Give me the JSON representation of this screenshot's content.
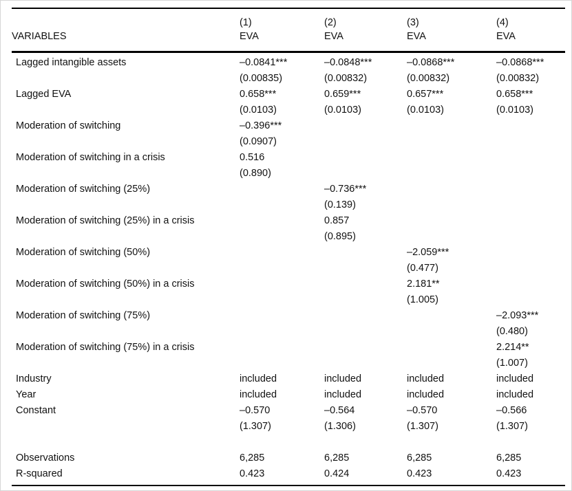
{
  "colors": {
    "text": "#111111",
    "rule": "#000000",
    "background": "#ffffff",
    "page_border": "#d6d6d6"
  },
  "table": {
    "header": {
      "variables_label": "VARIABLES",
      "model_numbers": [
        "(1)",
        "(2)",
        "(3)",
        "(4)"
      ],
      "dep_vars": [
        "EVA",
        "EVA",
        "EVA",
        "EVA"
      ]
    },
    "rows": [
      {
        "label": "Lagged intangible assets",
        "values": [
          "–0.0841***",
          "–0.0848***",
          "–0.0868***",
          "–0.0868***"
        ]
      },
      {
        "label": "",
        "values": [
          "(0.00835)",
          "(0.00832)",
          "(0.00832)",
          "(0.00832)"
        ]
      },
      {
        "label": "Lagged EVA",
        "values": [
          "0.658***",
          "0.659***",
          "0.657***",
          "0.658***"
        ]
      },
      {
        "label": "",
        "values": [
          "(0.0103)",
          "(0.0103)",
          "(0.0103)",
          "(0.0103)"
        ]
      },
      {
        "label": "Moderation of switching",
        "values": [
          "–0.396***",
          "",
          "",
          ""
        ]
      },
      {
        "label": "",
        "values": [
          "(0.0907)",
          "",
          "",
          ""
        ]
      },
      {
        "label": "Moderation of switching in a crisis",
        "values": [
          "0.516",
          "",
          "",
          ""
        ]
      },
      {
        "label": "",
        "values": [
          "(0.890)",
          "",
          "",
          ""
        ]
      },
      {
        "label": "Moderation of switching (25%)",
        "values": [
          "",
          "–0.736***",
          "",
          ""
        ]
      },
      {
        "label": "",
        "values": [
          "",
          "(0.139)",
          "",
          ""
        ]
      },
      {
        "label": "Moderation of switching (25%) in a crisis",
        "values": [
          "",
          "0.857",
          "",
          ""
        ]
      },
      {
        "label": "",
        "values": [
          "",
          "(0.895)",
          "",
          ""
        ]
      },
      {
        "label": "Moderation of switching (50%)",
        "values": [
          "",
          "",
          "–2.059***",
          ""
        ]
      },
      {
        "label": "",
        "values": [
          "",
          "",
          "(0.477)",
          ""
        ]
      },
      {
        "label": "Moderation of switching (50%) in a crisis",
        "values": [
          "",
          "",
          "2.181**",
          ""
        ]
      },
      {
        "label": "",
        "values": [
          "",
          "",
          "(1.005)",
          ""
        ]
      },
      {
        "label": "Moderation of switching (75%)",
        "values": [
          "",
          "",
          "",
          "–2.093***"
        ]
      },
      {
        "label": "",
        "values": [
          "",
          "",
          "",
          "(0.480)"
        ]
      },
      {
        "label": "Moderation of switching (75%) in a crisis",
        "values": [
          "",
          "",
          "",
          "2.214**"
        ]
      },
      {
        "label": "",
        "values": [
          "",
          "",
          "",
          "(1.007)"
        ]
      },
      {
        "label": "Industry",
        "values": [
          "included",
          "included",
          "included",
          "included"
        ]
      },
      {
        "label": "Year",
        "values": [
          "included",
          "included",
          "included",
          "included"
        ]
      },
      {
        "label": "Constant",
        "values": [
          "–0.570",
          "–0.564",
          "–0.570",
          "–0.566"
        ]
      },
      {
        "label": "",
        "values": [
          "(1.307)",
          "(1.306)",
          "(1.307)",
          "(1.307)"
        ]
      },
      {
        "label": "",
        "values": [
          "",
          "",
          "",
          ""
        ]
      },
      {
        "label": "Observations",
        "values": [
          "6,285",
          "6,285",
          "6,285",
          "6,285"
        ]
      },
      {
        "label": "R-squared",
        "values": [
          "0.423",
          "0.424",
          "0.423",
          "0.423"
        ]
      }
    ]
  }
}
